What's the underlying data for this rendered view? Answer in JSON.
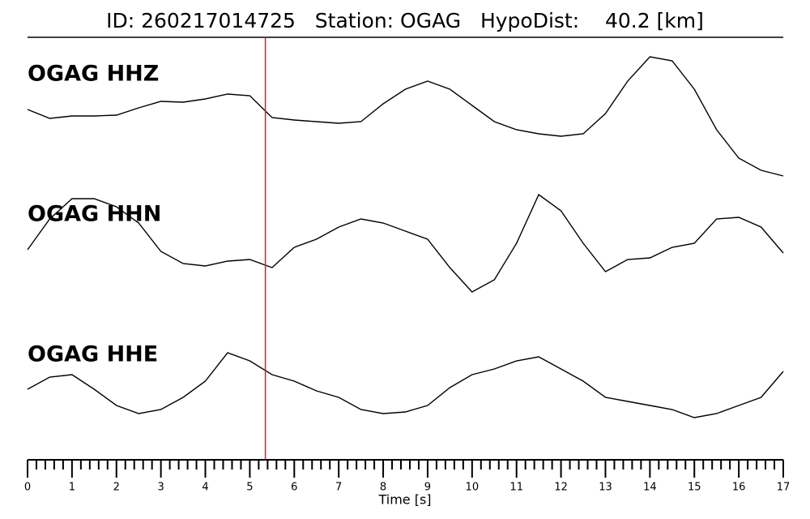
{
  "chart_data": {
    "type": "seismogram",
    "title": "ID: 260217014725   Station: OGAG   HypoDist:    40.2 [km]",
    "xlabel": "Time [s]",
    "xlim": [
      0,
      17
    ],
    "xticks": [
      0,
      1,
      2,
      3,
      4,
      5,
      6,
      7,
      8,
      9,
      10,
      11,
      12,
      13,
      14,
      15,
      16,
      17
    ],
    "minor_per_major": 5,
    "pick_time": 5.35,
    "pick_color": "#e8141b",
    "ylim": [
      -90,
      90
    ],
    "label_color": "#4e9a06",
    "x": [
      0,
      0.5,
      1,
      1.5,
      2,
      2.5,
      3,
      3.5,
      4,
      4.5,
      5,
      5.5,
      6,
      6.5,
      7,
      7.5,
      8,
      8.5,
      9,
      9.5,
      10,
      10.5,
      11,
      11.5,
      12,
      12.5,
      13,
      13.5,
      14,
      14.5,
      15,
      15.5,
      16,
      16.5,
      17
    ],
    "series": [
      {
        "name": "OGAG HHZ",
        "color": "#000000",
        "values": [
          5,
          -6,
          -3,
          -3,
          -2,
          7,
          15,
          14,
          18,
          24,
          22,
          -5,
          -8,
          -10,
          -12,
          -10,
          12,
          30,
          40,
          30,
          10,
          -10,
          -20,
          -25,
          -28,
          -25,
          0,
          40,
          70,
          65,
          30,
          -20,
          -55,
          -70,
          -77
        ]
      },
      {
        "name": "OGAG HHN",
        "color": "#000000",
        "values": [
          -8,
          30,
          55,
          55,
          45,
          25,
          -10,
          -25,
          -28,
          -22,
          -20,
          -30,
          -5,
          5,
          20,
          30,
          25,
          15,
          5,
          -30,
          -60,
          -45,
          0,
          60,
          40,
          0,
          -35,
          -20,
          -18,
          -5,
          0,
          30,
          32,
          20,
          -12
        ]
      },
      {
        "name": "OGAG HHE",
        "color": "#000000",
        "values": [
          0,
          15,
          18,
          0,
          -20,
          -30,
          -25,
          -10,
          10,
          45,
          35,
          18,
          10,
          -2,
          -10,
          -25,
          -30,
          -28,
          -20,
          2,
          18,
          25,
          35,
          40,
          25,
          10,
          -10,
          -15,
          -20,
          -25,
          -35,
          -30,
          -20,
          -10,
          22
        ]
      }
    ]
  }
}
